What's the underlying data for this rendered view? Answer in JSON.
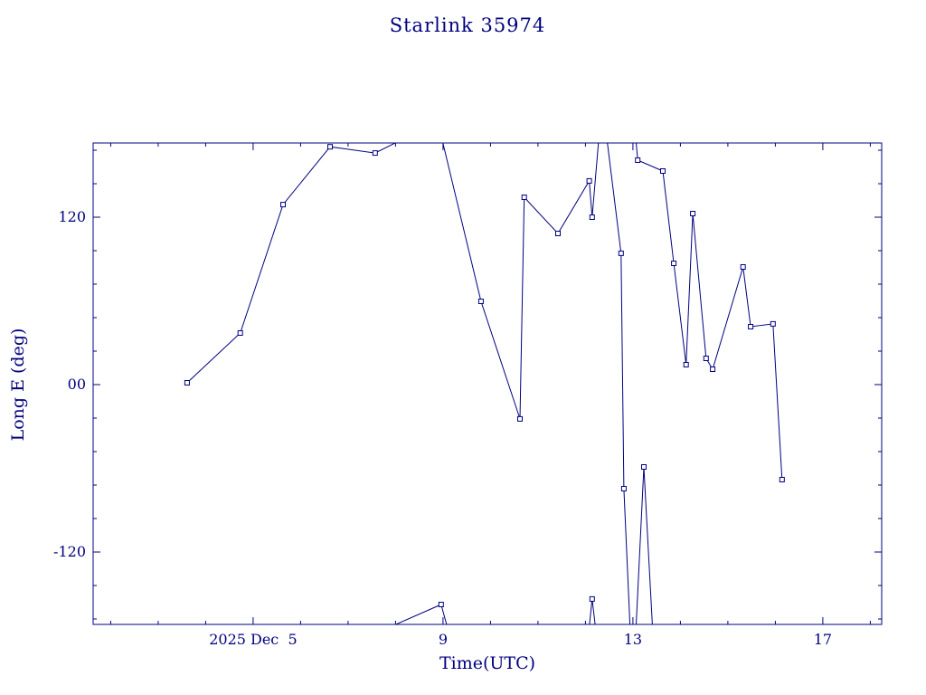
{
  "title": "Starlink 35974",
  "chart_data": {
    "type": "line",
    "title": "Starlink 35974",
    "xlabel": "Time(UTC)",
    "ylabel": "Long E (deg)",
    "background": "#ffffff",
    "axis_color": "#000080",
    "series_color": "#000080",
    "marker": "open-square",
    "marker_size": 5,
    "x_axis": {
      "range": [
        1.63,
        18.24
      ],
      "major_ticks": [
        {
          "value": 5,
          "label": "2025 Dec  5"
        },
        {
          "value": 9,
          "label": "9"
        },
        {
          "value": 13,
          "label": "13"
        },
        {
          "value": 17,
          "label": "17"
        }
      ],
      "minor_tick_step": 1
    },
    "y_axis": {
      "range": [
        -171.9,
        173.2
      ],
      "major_ticks": [
        {
          "value": -120,
          "label": "-120"
        },
        {
          "value": 0,
          "label": "00"
        },
        {
          "value": 120,
          "label": "120"
        }
      ],
      "minor_tick_step": 24
    },
    "segments": [
      {
        "points": [
          {
            "t": 3.61,
            "v": 1.3,
            "m": true
          },
          {
            "t": 4.73,
            "v": 37.0,
            "m": true
          },
          {
            "t": 5.63,
            "v": 129.0,
            "m": true
          },
          {
            "t": 6.62,
            "v": 170.5,
            "m": true
          },
          {
            "t": 7.57,
            "v": 166.0,
            "m": true
          },
          {
            "t": 8.89,
            "v": 188.5,
            "m": false
          },
          {
            "t": 9.8,
            "v": 59.7,
            "m": true
          },
          {
            "t": 10.62,
            "v": -24.6,
            "m": true
          },
          {
            "t": 10.71,
            "v": 134.3,
            "m": true
          },
          {
            "t": 11.42,
            "v": 108.3,
            "m": true
          },
          {
            "t": 12.08,
            "v": 146.0,
            "m": true
          },
          {
            "t": 12.14,
            "v": 120.0,
            "m": true
          },
          {
            "t": 12.35,
            "v": 204.0,
            "m": false
          },
          {
            "t": 12.75,
            "v": 94.1,
            "m": true
          },
          {
            "t": 12.81,
            "v": -74.6,
            "m": true
          },
          {
            "t": 13.0,
            "v": -220.0,
            "m": false
          },
          {
            "t": 13.23,
            "v": -59.0,
            "m": true
          },
          {
            "t": 13.5,
            "v": -230.0,
            "m": false
          }
        ]
      },
      {
        "points": [
          {
            "t": 7.6,
            "v": -178.0,
            "m": false
          },
          {
            "t": 8.96,
            "v": -157.6,
            "m": true
          },
          {
            "t": 9.3,
            "v": -200.0,
            "m": false
          }
        ]
      },
      {
        "points": [
          {
            "t": 12.0,
            "v": -200.0,
            "m": false
          },
          {
            "t": 12.14,
            "v": -153.7,
            "m": true
          },
          {
            "t": 12.3,
            "v": -200.0,
            "m": false
          }
        ]
      },
      {
        "points": [
          {
            "t": 13.0,
            "v": 200.0,
            "m": false
          },
          {
            "t": 13.1,
            "v": 160.9,
            "m": true
          },
          {
            "t": 13.63,
            "v": 153.1,
            "m": true
          },
          {
            "t": 13.86,
            "v": 86.9,
            "m": true
          },
          {
            "t": 14.12,
            "v": 14.3,
            "m": true
          },
          {
            "t": 14.26,
            "v": 122.6,
            "m": true
          },
          {
            "t": 14.54,
            "v": 18.8,
            "m": true
          },
          {
            "t": 14.68,
            "v": 11.0,
            "m": true
          },
          {
            "t": 15.32,
            "v": 84.3,
            "m": true
          },
          {
            "t": 15.48,
            "v": 41.5,
            "m": true
          },
          {
            "t": 15.95,
            "v": 43.5,
            "m": true
          },
          {
            "t": 16.14,
            "v": -68.1,
            "m": true
          }
        ]
      }
    ]
  }
}
